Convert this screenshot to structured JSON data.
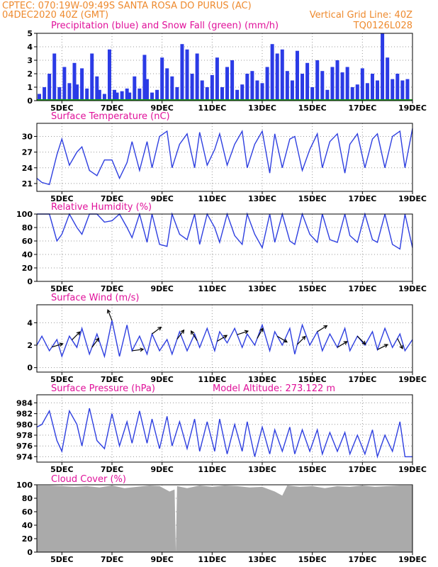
{
  "header": {
    "left_line1": "CPTEC:   070:19W-09:49S   SANTA ROSA DO PURUS (AC)",
    "left_line2": "04DEC2020 40Z (GMT)",
    "right_line2": "Vertical Grid Line: 40Z",
    "right_line3": "TQ0126L028"
  },
  "colors": {
    "header": "#ee8a2e",
    "title": "#e0119a",
    "line": "#2e3fe0",
    "bar": "#2b3be6",
    "snow": "#1aa31a",
    "cloud": "#aaaaaa",
    "grid": "#999999"
  },
  "x_ticks": [
    "5DEC",
    "7DEC",
    "9DEC",
    "11DEC",
    "13DEC",
    "15DEC",
    "17DEC",
    "19DEC"
  ],
  "x_tick_days": [
    5,
    7,
    9,
    11,
    13,
    15,
    17,
    19
  ],
  "chart_data": [
    {
      "id": "precip",
      "type": "bar",
      "title": "Precipitation (blue) and Snow Fall (green) (mm/h)",
      "ylim": [
        0,
        5
      ],
      "yticks": [
        0,
        1,
        2,
        3,
        4,
        5
      ],
      "series": [
        {
          "name": "Precipitation",
          "x": [
            4.1,
            4.3,
            4.5,
            4.7,
            4.9,
            5.1,
            5.3,
            5.5,
            5.6,
            5.8,
            6.0,
            6.2,
            6.4,
            6.5,
            6.7,
            6.9,
            7.1,
            7.2,
            7.4,
            7.6,
            7.7,
            7.9,
            8.1,
            8.3,
            8.4,
            8.6,
            8.8,
            9.0,
            9.2,
            9.4,
            9.6,
            9.8,
            10.0,
            10.2,
            10.4,
            10.6,
            10.8,
            11.0,
            11.2,
            11.4,
            11.6,
            11.8,
            12.0,
            12.2,
            12.4,
            12.6,
            12.8,
            13.0,
            13.2,
            13.4,
            13.6,
            13.8,
            14.0,
            14.2,
            14.4,
            14.6,
            14.8,
            15.0,
            15.2,
            15.4,
            15.6,
            15.8,
            16.0,
            16.2,
            16.4,
            16.6,
            16.8,
            17.0,
            17.2,
            17.4,
            17.6,
            17.8,
            18.0,
            18.2,
            18.4,
            18.6,
            18.8
          ],
          "values": [
            0.5,
            1.0,
            2.0,
            3.5,
            1.0,
            2.5,
            1.3,
            2.8,
            1.2,
            2.4,
            0.9,
            3.5,
            1.8,
            0.8,
            0.5,
            3.8,
            0.8,
            0.6,
            0.7,
            0.9,
            0.6,
            1.8,
            0.9,
            3.4,
            1.6,
            0.6,
            0.8,
            3.2,
            2.4,
            1.8,
            1.0,
            4.2,
            3.8,
            2.0,
            3.5,
            1.5,
            1.0,
            1.9,
            3.2,
            1.0,
            2.5,
            3.0,
            0.8,
            1.2,
            2.0,
            2.2,
            1.5,
            1.3,
            2.5,
            4.2,
            3.5,
            3.8,
            2.2,
            1.5,
            3.7,
            2.0,
            2.8,
            1.0,
            3.0,
            2.2,
            0.8,
            2.5,
            3.0,
            2.1,
            2.5,
            1.0,
            1.2,
            2.4,
            1.3,
            2.0,
            1.5,
            5.0,
            3.2,
            1.6,
            2.0,
            1.5,
            1.6
          ]
        },
        {
          "name": "Snow Fall",
          "x": [
            4,
            19
          ],
          "values": [
            0,
            0
          ]
        }
      ]
    },
    {
      "id": "temp",
      "type": "line",
      "title": "Surface Temperature (nC)",
      "ylim": [
        19.5,
        32.5
      ],
      "yticks": [
        21,
        24,
        27,
        30
      ],
      "series": [
        {
          "name": "Surface Temperature",
          "x": [
            4.0,
            4.2,
            4.5,
            4.8,
            5.0,
            5.3,
            5.6,
            5.8,
            6.1,
            6.4,
            6.7,
            7.0,
            7.3,
            7.6,
            7.8,
            8.1,
            8.4,
            8.6,
            8.9,
            9.2,
            9.4,
            9.7,
            10.0,
            10.3,
            10.5,
            10.8,
            11.1,
            11.3,
            11.6,
            11.9,
            12.2,
            12.4,
            12.7,
            13.0,
            13.3,
            13.5,
            13.8,
            14.1,
            14.3,
            14.6,
            14.9,
            15.2,
            15.4,
            15.7,
            16.0,
            16.3,
            16.5,
            16.8,
            17.1,
            17.4,
            17.6,
            17.9,
            18.2,
            18.5,
            18.7,
            19.0
          ],
          "values": [
            22.0,
            21.2,
            20.8,
            26.5,
            29.5,
            24.5,
            27.0,
            28.0,
            23.5,
            22.5,
            25.5,
            25.5,
            22.0,
            25.0,
            29.0,
            23.5,
            29.0,
            24.0,
            30.0,
            31.0,
            24.0,
            28.5,
            30.5,
            24.0,
            30.8,
            24.5,
            27.5,
            30.5,
            24.5,
            28.5,
            31.0,
            24.0,
            28.5,
            31.0,
            23.0,
            30.5,
            24.0,
            29.5,
            30.0,
            23.5,
            27.5,
            30.5,
            24.0,
            29.0,
            30.5,
            23.0,
            28.5,
            30.5,
            24.0,
            29.5,
            30.5,
            24.0,
            30.0,
            31.0,
            24.0,
            31.5
          ]
        }
      ]
    },
    {
      "id": "rh",
      "type": "line",
      "title": "Relative Humidity (%)",
      "ylim": [
        0,
        100
      ],
      "yticks": [
        0,
        20,
        40,
        60,
        80,
        100
      ],
      "series": [
        {
          "name": "Relative Humidity",
          "x": [
            4.0,
            4.2,
            4.5,
            4.8,
            5.0,
            5.3,
            5.6,
            5.8,
            6.1,
            6.4,
            6.7,
            7.0,
            7.3,
            7.6,
            7.8,
            8.1,
            8.4,
            8.6,
            8.9,
            9.2,
            9.4,
            9.7,
            10.0,
            10.3,
            10.5,
            10.8,
            11.1,
            11.3,
            11.6,
            11.9,
            12.2,
            12.4,
            12.7,
            13.0,
            13.3,
            13.5,
            13.8,
            14.1,
            14.3,
            14.6,
            14.9,
            15.2,
            15.4,
            15.7,
            16.0,
            16.3,
            16.5,
            16.8,
            17.1,
            17.4,
            17.6,
            17.9,
            18.2,
            18.5,
            18.7,
            19.0
          ],
          "values": [
            100,
            100,
            100,
            60,
            70,
            100,
            80,
            70,
            100,
            100,
            88,
            90,
            100,
            80,
            65,
            100,
            58,
            100,
            55,
            52,
            100,
            70,
            62,
            100,
            55,
            100,
            80,
            58,
            100,
            68,
            55,
            100,
            70,
            50,
            100,
            58,
            100,
            60,
            55,
            100,
            70,
            58,
            100,
            62,
            58,
            100,
            68,
            58,
            100,
            62,
            58,
            100,
            55,
            48,
            100,
            50
          ]
        }
      ]
    },
    {
      "id": "wind",
      "type": "line",
      "title": "Surface Wind (m/s)",
      "ylim": [
        -0.4,
        5.6
      ],
      "yticks": [
        0,
        2,
        4
      ],
      "series": [
        {
          "name": "Surface Wind",
          "x": [
            4.0,
            4.2,
            4.5,
            4.8,
            5.0,
            5.3,
            5.6,
            5.8,
            6.1,
            6.4,
            6.7,
            7.0,
            7.3,
            7.6,
            7.8,
            8.1,
            8.4,
            8.6,
            8.9,
            9.2,
            9.4,
            9.7,
            10.0,
            10.3,
            10.5,
            10.8,
            11.1,
            11.3,
            11.6,
            11.9,
            12.2,
            12.4,
            12.7,
            13.0,
            13.3,
            13.5,
            13.8,
            14.1,
            14.3,
            14.6,
            14.9,
            15.2,
            15.4,
            15.7,
            16.0,
            16.3,
            16.5,
            16.8,
            17.1,
            17.4,
            17.6,
            17.9,
            18.2,
            18.5,
            18.7,
            19.0
          ],
          "values": [
            2.0,
            2.8,
            1.5,
            2.5,
            1.0,
            2.8,
            1.8,
            3.5,
            1.2,
            3.0,
            1.0,
            4.2,
            1.0,
            3.8,
            1.5,
            2.8,
            1.2,
            3.0,
            1.5,
            2.5,
            1.2,
            3.2,
            1.5,
            3.0,
            1.8,
            3.5,
            1.5,
            3.2,
            2.2,
            3.5,
            1.8,
            3.0,
            2.0,
            3.8,
            1.5,
            3.2,
            2.0,
            3.5,
            1.2,
            3.8,
            2.0,
            3.2,
            1.5,
            3.0,
            1.8,
            3.5,
            1.5,
            2.8,
            2.0,
            3.2,
            1.6,
            3.5,
            1.8,
            3.0,
            1.5,
            2.5
          ]
        }
      ],
      "vectors": {
        "x": [
          4.6,
          5.4,
          6.2,
          7.0,
          7.8,
          8.6,
          9.6,
          10.4,
          11.2,
          12.0,
          12.8,
          13.6,
          14.4,
          15.2,
          16.0,
          16.8,
          17.6,
          18.4
        ],
        "u": [
          1.0,
          0.5,
          0.6,
          -0.4,
          1.5,
          0.8,
          0.6,
          -0.5,
          1.0,
          1.2,
          0.5,
          1.0,
          1.0,
          0.8,
          1.0,
          0.6,
          1.0,
          0.4
        ],
        "v": [
          0.3,
          0.5,
          0.8,
          1.0,
          0.2,
          0.6,
          0.8,
          0.8,
          0.6,
          0.4,
          0.9,
          -0.6,
          1.0,
          0.5,
          0.6,
          -0.6,
          0.5,
          -0.8
        ]
      }
    },
    {
      "id": "pres",
      "type": "line",
      "title": "Surface Pressure (hPa)",
      "subtitle": "Model Altitude: 273.122 m",
      "ylim": [
        973,
        985.5
      ],
      "yticks": [
        974,
        976,
        978,
        980,
        982,
        984
      ],
      "series": [
        {
          "name": "Surface Pressure",
          "x": [
            4.0,
            4.2,
            4.5,
            4.8,
            5.0,
            5.3,
            5.6,
            5.8,
            6.1,
            6.4,
            6.7,
            7.0,
            7.3,
            7.6,
            7.8,
            8.1,
            8.4,
            8.6,
            8.9,
            9.2,
            9.4,
            9.7,
            10.0,
            10.3,
            10.5,
            10.8,
            11.1,
            11.3,
            11.6,
            11.9,
            12.2,
            12.4,
            12.7,
            13.0,
            13.3,
            13.5,
            13.8,
            14.1,
            14.3,
            14.6,
            14.9,
            15.2,
            15.4,
            15.7,
            16.0,
            16.3,
            16.5,
            16.8,
            17.1,
            17.4,
            17.6,
            17.9,
            18.2,
            18.5,
            18.7,
            19.0
          ],
          "values": [
            979.5,
            980.0,
            982.5,
            977.0,
            975.0,
            982.5,
            980.0,
            976.0,
            983.0,
            977.0,
            975.5,
            982.0,
            976.0,
            980.5,
            976.5,
            982.5,
            976.5,
            981.0,
            975.5,
            981.5,
            976.0,
            980.5,
            975.5,
            981.0,
            975.0,
            980.5,
            975.0,
            981.0,
            974.5,
            980.0,
            975.0,
            980.5,
            974.0,
            979.5,
            974.5,
            979.0,
            975.0,
            979.5,
            974.5,
            979.0,
            975.0,
            979.0,
            974.5,
            978.5,
            975.0,
            978.5,
            974.5,
            978.0,
            974.5,
            979.0,
            974.0,
            978.0,
            975.0,
            980.5,
            974.0,
            974.0
          ]
        }
      ]
    },
    {
      "id": "cloud",
      "type": "area",
      "title": "Cloud Cover (%)",
      "ylim": [
        0,
        100
      ],
      "yticks": [
        0,
        20,
        40,
        60,
        80,
        100
      ],
      "series": [
        {
          "name": "Cloud Cover",
          "x": [
            4.0,
            4.5,
            5.0,
            5.5,
            6.0,
            6.5,
            7.0,
            7.5,
            8.0,
            8.5,
            8.9,
            9.3,
            9.5,
            9.55,
            9.6,
            10.0,
            10.5,
            11.0,
            11.5,
            12.0,
            12.5,
            13.0,
            13.5,
            13.8,
            14.0,
            14.5,
            15.0,
            15.5,
            16.0,
            16.5,
            17.0,
            17.5,
            18.0,
            18.5,
            19.0
          ],
          "values": [
            99,
            99,
            98,
            97,
            98,
            96,
            99,
            95,
            97,
            99,
            98,
            90,
            93,
            0,
            98,
            95,
            99,
            97,
            99,
            98,
            96,
            97,
            90,
            84,
            99,
            97,
            98,
            95,
            98,
            97,
            99,
            97,
            98,
            99,
            99
          ]
        }
      ]
    }
  ]
}
